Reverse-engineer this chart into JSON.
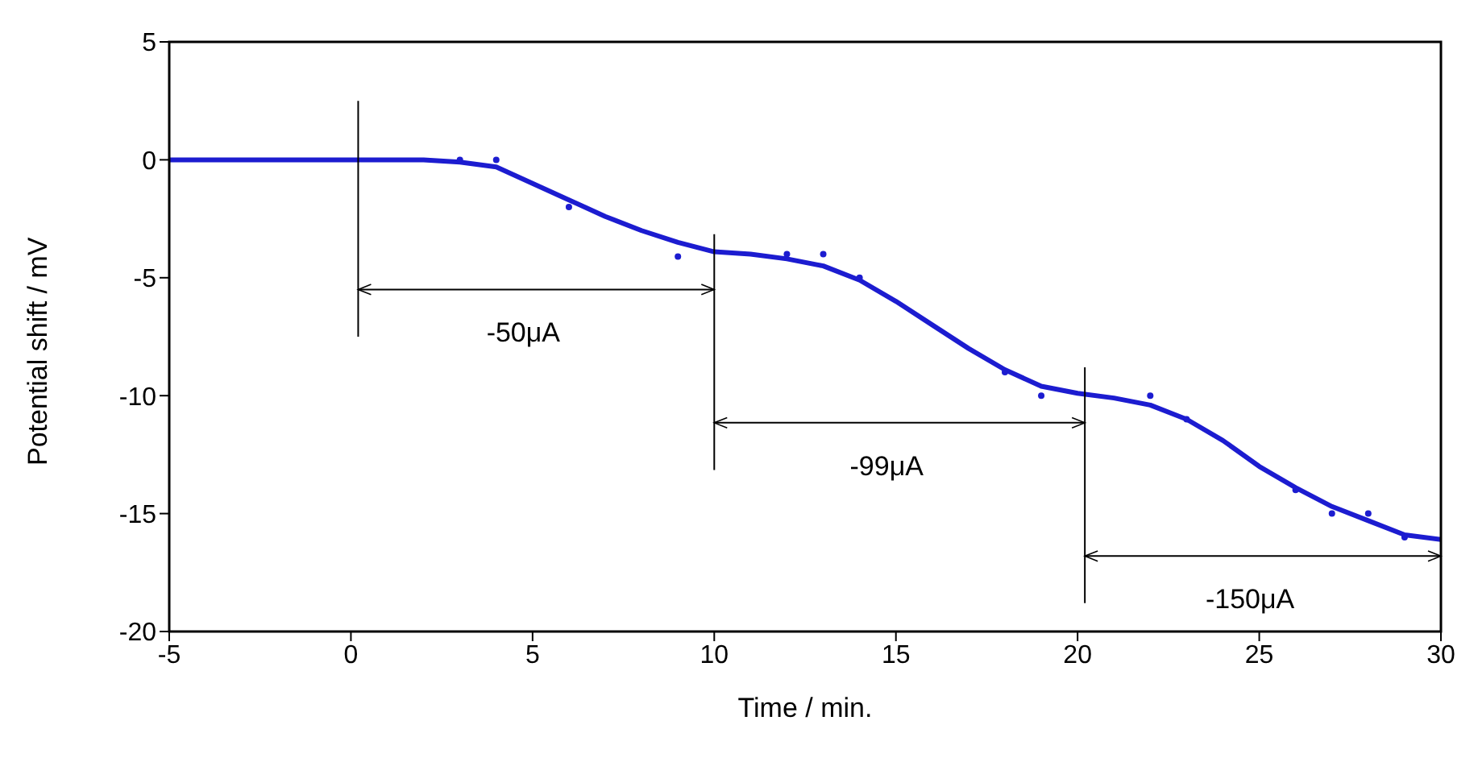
{
  "chart_data": {
    "type": "line",
    "xlabel": "Time / min.",
    "ylabel": "Potential shift / mV",
    "xlim": [
      -5,
      30
    ],
    "ylim": [
      -20,
      5
    ],
    "xticks": [
      -5,
      0,
      5,
      10,
      15,
      20,
      25,
      30
    ],
    "yticks": [
      -20,
      -15,
      -10,
      -5,
      0,
      5
    ],
    "series": [
      {
        "color": "#1c1cd0",
        "marker": "none",
        "line_style": "solid",
        "x": [
          -5,
          0,
          2,
          3,
          4,
          5,
          6,
          7,
          8,
          9,
          10,
          11,
          12,
          13,
          14,
          15,
          16,
          17,
          18,
          19,
          20,
          21,
          22,
          23,
          24,
          25,
          26,
          27,
          28,
          29,
          30
        ],
        "values": [
          0,
          0,
          0,
          -0.1,
          -0.3,
          -1.0,
          -1.7,
          -2.4,
          -3.0,
          -3.5,
          -3.9,
          -4.0,
          -4.2,
          -4.5,
          -5.1,
          -6.0,
          -7.0,
          -8.0,
          -8.9,
          -9.6,
          -9.9,
          -10.1,
          -10.4,
          -11.0,
          -11.9,
          -13.0,
          -13.9,
          -14.7,
          -15.3,
          -15.9,
          -16.1
        ]
      },
      {
        "type": "scatter",
        "color": "#1c1cd0",
        "marker": "circle",
        "x": [
          3,
          4,
          6,
          9,
          12,
          13,
          14,
          18,
          19,
          22,
          23,
          26,
          27,
          28,
          29
        ],
        "values": [
          0,
          0,
          -2,
          -4.1,
          -4,
          -4,
          -5,
          -9,
          -10,
          -10,
          -11,
          -14,
          -15,
          -15,
          -16
        ]
      }
    ],
    "ref_lines": [
      {
        "axis": "x",
        "value": 0.2,
        "color": "#000000"
      },
      {
        "axis": "x",
        "value": 10,
        "color": "#000000"
      },
      {
        "axis": "x",
        "value": 20.2,
        "color": "#000000"
      }
    ],
    "annotations": [
      "-50μA",
      "-99μA",
      "-150μA"
    ]
  }
}
